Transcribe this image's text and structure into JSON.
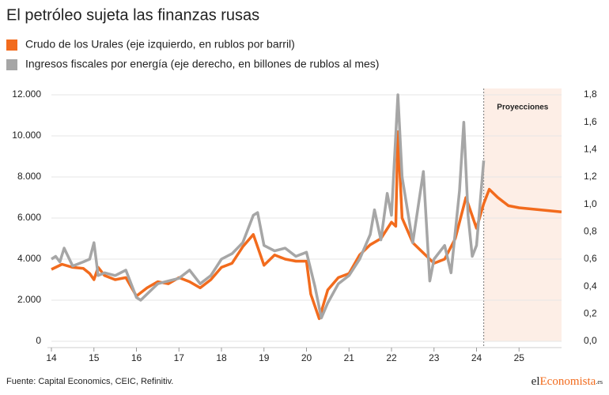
{
  "chart_data": {
    "type": "line",
    "title": "El petróleo sujeta las finanzas rusas",
    "source": "Fuente: Capital Economics, CEIC, Refinitiv.",
    "logo": [
      "el",
      "Economista",
      ".es"
    ],
    "xlim": [
      14,
      26
    ],
    "xticks": [
      14,
      15,
      16,
      17,
      18,
      19,
      20,
      21,
      22,
      23,
      24,
      25
    ],
    "ylim": [
      0,
      12000
    ],
    "yticks": [
      0,
      {
        "value": 2000,
        "label": "2.000"
      },
      {
        "value": 4000,
        "label": "4.000"
      },
      {
        "value": 6000,
        "label": "6.000"
      },
      {
        "value": 8000,
        "label": "8.000"
      },
      {
        "value": 10000,
        "label": "10.000"
      },
      {
        "value": 12000,
        "label": "12.000"
      }
    ],
    "y2lim": [
      0,
      1.8
    ],
    "y2ticks": [
      {
        "value": 0,
        "label": "0,0"
      },
      {
        "value": 0.2,
        "label": "0,2"
      },
      {
        "value": 0.4,
        "label": "0,4"
      },
      {
        "value": 0.6,
        "label": "0,6"
      },
      {
        "value": 0.8,
        "label": "0,8"
      },
      {
        "value": 1.0,
        "label": "1,0"
      },
      {
        "value": 1.2,
        "label": "1,2"
      },
      {
        "value": 1.4,
        "label": "1,4"
      },
      {
        "value": 1.6,
        "label": "1,6"
      },
      {
        "value": 1.8,
        "label": "1,8"
      }
    ],
    "grid": true,
    "projection": {
      "start": 24.17,
      "label": "Proyecciones",
      "color": "#fdeee6"
    },
    "series": [
      {
        "name": "Crudo de los Urales (eje izquierdo, en rublos por barril)",
        "color": "#f26b1d",
        "axis": "y",
        "x": [
          14.0,
          14.25,
          14.5,
          14.75,
          14.9,
          15.0,
          15.1,
          15.25,
          15.5,
          15.75,
          16.0,
          16.25,
          16.5,
          16.75,
          17.0,
          17.25,
          17.5,
          17.75,
          18.0,
          18.25,
          18.5,
          18.75,
          18.9,
          19.0,
          19.25,
          19.5,
          19.75,
          20.0,
          20.1,
          20.3,
          20.5,
          20.75,
          21.0,
          21.25,
          21.5,
          21.75,
          22.0,
          22.1,
          22.15,
          22.25,
          22.5,
          22.75,
          23.0,
          23.25,
          23.5,
          23.75,
          24.0,
          24.17,
          24.3,
          24.5,
          24.75,
          25.0,
          25.5,
          26.0
        ],
        "values": [
          3500,
          3750,
          3600,
          3550,
          3300,
          3000,
          3600,
          3200,
          3000,
          3100,
          2200,
          2600,
          2900,
          2800,
          3100,
          2900,
          2600,
          3000,
          3600,
          3800,
          4600,
          5200,
          4300,
          3700,
          4200,
          4000,
          3900,
          3900,
          2300,
          1100,
          2500,
          3100,
          3300,
          4200,
          4700,
          5000,
          5800,
          5600,
          10200,
          6000,
          4800,
          4300,
          3800,
          4000,
          5000,
          7000,
          5500,
          6700,
          7400,
          7000,
          6600,
          6500,
          6400,
          6300
        ]
      },
      {
        "name": "Ingresos fiscales por energía (eje derecho, en billones de rublos al mes)",
        "color": "#a6a6a6",
        "axis": "y2",
        "x": [
          14.0,
          14.1,
          14.2,
          14.3,
          14.5,
          14.75,
          14.9,
          15.0,
          15.1,
          15.25,
          15.5,
          15.75,
          16.0,
          16.1,
          16.5,
          16.75,
          17.0,
          17.25,
          17.5,
          17.75,
          18.0,
          18.25,
          18.5,
          18.75,
          18.85,
          19.0,
          19.25,
          19.5,
          19.75,
          20.0,
          20.2,
          20.35,
          20.5,
          20.75,
          21.0,
          21.25,
          21.5,
          21.6,
          21.75,
          21.9,
          22.0,
          22.15,
          22.25,
          22.5,
          22.75,
          22.9,
          23.0,
          23.25,
          23.4,
          23.6,
          23.7,
          23.8,
          23.9,
          24.0,
          24.17
        ],
        "values": [
          0.6,
          0.62,
          0.58,
          0.68,
          0.55,
          0.58,
          0.6,
          0.72,
          0.48,
          0.5,
          0.48,
          0.52,
          0.32,
          0.3,
          0.42,
          0.44,
          0.46,
          0.52,
          0.42,
          0.48,
          0.6,
          0.64,
          0.72,
          0.92,
          0.94,
          0.7,
          0.66,
          0.68,
          0.62,
          0.65,
          0.4,
          0.17,
          0.28,
          0.42,
          0.48,
          0.6,
          0.78,
          0.96,
          0.74,
          1.08,
          0.92,
          1.8,
          1.2,
          0.72,
          1.24,
          0.44,
          0.6,
          0.7,
          0.5,
          1.1,
          1.6,
          0.92,
          0.62,
          0.7,
          1.32
        ]
      }
    ]
  }
}
